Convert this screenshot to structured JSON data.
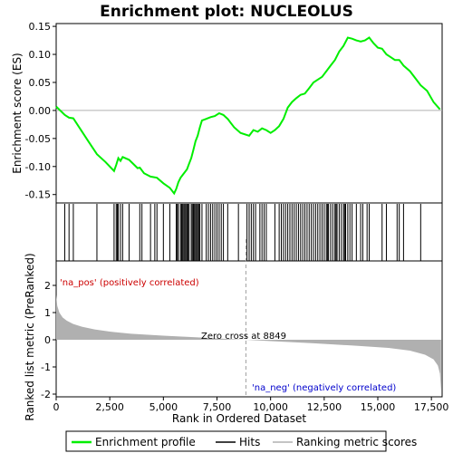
{
  "chart_data": {
    "type": "line",
    "title": "Enrichment plot: NUCLEOLUS",
    "xlabel": "Rank in Ordered Dataset",
    "ylabel_top": "Enrichment score (ES)",
    "ylabel_bottom": "Ranked list metric (PreRanked)",
    "x_range": [
      0,
      18000
    ],
    "x_ticks": [
      0,
      2500,
      5000,
      7500,
      10000,
      12500,
      15000,
      17500
    ],
    "x_tick_labels": [
      "0",
      "2,500",
      "5,000",
      "7,500",
      "10,000",
      "12,500",
      "15,000",
      "17,500"
    ],
    "es_ylim": [
      -0.165,
      0.155
    ],
    "es_ticks": [
      -0.15,
      -0.1,
      -0.05,
      0.0,
      0.05,
      0.1,
      0.15
    ],
    "es_tick_labels": [
      "-0.15",
      "-0.10",
      "-0.05",
      "0.00",
      "0.05",
      "0.10",
      "0.15"
    ],
    "metric_ylim": [
      -2.1,
      2.9
    ],
    "metric_ticks": [
      -2,
      -1,
      0,
      1,
      2
    ],
    "metric_tick_labels": [
      "-2",
      "-1",
      "0",
      "1",
      "2"
    ],
    "zero_cross_rank": 8849,
    "zero_cross_label": "Zero cross at 8849",
    "pos_label": "'na_pos' (positively correlated)",
    "neg_label": "'na_neg' (negatively correlated)",
    "legend": [
      "Enrichment profile",
      "Hits",
      "Ranking metric scores"
    ],
    "colors": {
      "es_line": "#00ee00",
      "hit": "#000000",
      "metric_fill": "#b0b0b0",
      "pos_red": "#ff0000",
      "neg_blue": "#0000ff",
      "zero_line": "#a0a0a0"
    },
    "es_profile": {
      "x": [
        0,
        400,
        600,
        800,
        1500,
        1900,
        2300,
        2700,
        2800,
        2900,
        3000,
        3100,
        3400,
        3800,
        3900,
        4100,
        4400,
        4700,
        5000,
        5300,
        5500,
        5600,
        5700,
        5800,
        5900,
        6000,
        6100,
        6200,
        6300,
        6400,
        6500,
        6600,
        6700,
        6800,
        7000,
        7200,
        7400,
        7600,
        7800,
        8000,
        8300,
        8600,
        9000,
        9200,
        9400,
        9600,
        9800,
        10000,
        10200,
        10400,
        10600,
        10800,
        11000,
        11200,
        11400,
        11600,
        11800,
        12000,
        12200,
        12400,
        12600,
        12800,
        13000,
        13200,
        13400,
        13600,
        13800,
        14000,
        14200,
        14400,
        14600,
        14800,
        15000,
        15200,
        15400,
        15600,
        15800,
        16000,
        16200,
        16500,
        16800,
        17000,
        17300,
        17600,
        17900
      ],
      "y": [
        0.007,
        -0.008,
        -0.013,
        -0.014,
        -0.055,
        -0.078,
        -0.092,
        -0.108,
        -0.097,
        -0.085,
        -0.09,
        -0.083,
        -0.088,
        -0.103,
        -0.102,
        -0.112,
        -0.118,
        -0.12,
        -0.13,
        -0.138,
        -0.148,
        -0.14,
        -0.128,
        -0.12,
        -0.115,
        -0.11,
        -0.105,
        -0.095,
        -0.085,
        -0.07,
        -0.055,
        -0.045,
        -0.03,
        -0.018,
        -0.015,
        -0.012,
        -0.01,
        -0.005,
        -0.008,
        -0.015,
        -0.03,
        -0.04,
        -0.045,
        -0.035,
        -0.038,
        -0.032,
        -0.035,
        -0.04,
        -0.035,
        -0.028,
        -0.015,
        0.005,
        0.015,
        0.022,
        0.028,
        0.03,
        0.04,
        0.05,
        0.055,
        0.06,
        0.07,
        0.08,
        0.09,
        0.105,
        0.115,
        0.13,
        0.128,
        0.125,
        0.123,
        0.125,
        0.13,
        0.12,
        0.112,
        0.11,
        0.1,
        0.095,
        0.09,
        0.09,
        0.08,
        0.07,
        0.055,
        0.045,
        0.035,
        0.015,
        0.002
      ]
    },
    "hits": [
      400,
      600,
      800,
      1900,
      2700,
      2800,
      2850,
      2900,
      3000,
      3100,
      3400,
      3900,
      4000,
      4400,
      4600,
      4700,
      5000,
      5300,
      5600,
      5650,
      5700,
      5800,
      5850,
      5900,
      5950,
      6000,
      6050,
      6100,
      6150,
      6200,
      6300,
      6350,
      6400,
      6450,
      6500,
      6550,
      6600,
      6650,
      6700,
      6800,
      7000,
      7100,
      7200,
      7300,
      7400,
      7500,
      7600,
      7700,
      7800,
      8000,
      8500,
      8900,
      9000,
      9100,
      9200,
      9300,
      9500,
      9600,
      9700,
      9800,
      10200,
      10400,
      10500,
      10600,
      10700,
      10800,
      10900,
      11000,
      11100,
      11200,
      11300,
      11400,
      11500,
      11600,
      11700,
      11800,
      11900,
      12000,
      12100,
      12200,
      12300,
      12400,
      12500,
      12600,
      12650,
      12700,
      12800,
      12900,
      13000,
      13050,
      13100,
      13200,
      13300,
      13400,
      13450,
      13500,
      13600,
      13700,
      13800,
      14000,
      14200,
      14300,
      14500,
      14600,
      15200,
      15400,
      15900,
      16000,
      16200,
      17000
    ],
    "metric_curve": {
      "x": [
        0,
        50,
        150,
        300,
        500,
        800,
        1200,
        1800,
        2500,
        3500,
        5000,
        6500,
        8000,
        8849,
        10000,
        12000,
        14000,
        15500,
        16500,
        17200,
        17600,
        17800,
        17900,
        17950
      ],
      "y": [
        1.65,
        1.25,
        1.0,
        0.82,
        0.7,
        0.58,
        0.48,
        0.38,
        0.3,
        0.22,
        0.15,
        0.09,
        0.03,
        0.0,
        -0.05,
        -0.13,
        -0.22,
        -0.3,
        -0.4,
        -0.55,
        -0.72,
        -0.95,
        -1.25,
        -1.9
      ]
    }
  }
}
